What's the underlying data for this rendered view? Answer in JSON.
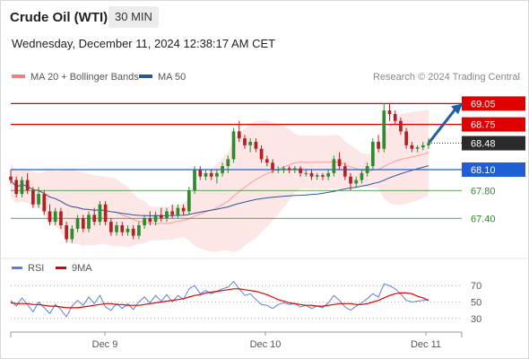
{
  "header": {
    "instrument": "Crude Oil (WTI)",
    "timeframe": "30 MIN",
    "datetime": "Wednesday, December 11, 2024 12:38:17 AM CET"
  },
  "legend": {
    "ma20": "MA 20 + Bollinger Bands",
    "ma50": "MA 50",
    "ma20_color": "#f08080",
    "ma50_color": "#2b579a"
  },
  "credit": "Research © 2024 Trading Central",
  "rsi_legend": {
    "rsi": "RSI",
    "ma9": "9MA",
    "rsi_color": "#5b7fdb",
    "ma9_color": "#e00000"
  },
  "colors": {
    "resistance": "#e00000",
    "support": "#1f5fd6",
    "target_green": "#2e8b2e",
    "last_price": "#2b2b2b",
    "bull": "#2e8b2e",
    "bear": "#b22222",
    "band_fill": "#fde3e3",
    "arrow": "#1f5fa8"
  },
  "chart_data": [
    {
      "type": "candlestick",
      "title": "Crude Oil (WTI)",
      "x_ticks": [
        "Dec 9",
        "Dec 10",
        "Dec 11"
      ],
      "ylim": [
        66.9,
        69.3
      ],
      "levels": [
        {
          "label": "69.05",
          "value": 69.05,
          "kind": "resistance"
        },
        {
          "label": "68.75",
          "value": 68.75,
          "kind": "resistance"
        },
        {
          "label": "68.48",
          "value": 68.48,
          "kind": "last"
        },
        {
          "label": "68.10",
          "value": 68.1,
          "kind": "pivot"
        },
        {
          "label": "67.80",
          "value": 67.8,
          "kind": "support"
        },
        {
          "label": "67.40",
          "value": 67.4,
          "kind": "support"
        }
      ],
      "candles": [
        [
          68.0,
          68.1,
          67.9,
          67.95
        ],
        [
          67.95,
          68.0,
          67.7,
          67.75
        ],
        [
          67.75,
          68.0,
          67.7,
          67.95
        ],
        [
          67.95,
          68.05,
          67.75,
          67.8
        ],
        [
          67.8,
          67.85,
          67.55,
          67.6
        ],
        [
          67.6,
          67.85,
          67.55,
          67.75
        ],
        [
          67.75,
          67.8,
          67.45,
          67.5
        ],
        [
          67.5,
          67.6,
          67.3,
          67.35
        ],
        [
          67.35,
          67.55,
          67.3,
          67.5
        ],
        [
          67.5,
          67.55,
          67.25,
          67.3
        ],
        [
          67.3,
          67.35,
          67.05,
          67.1
        ],
        [
          67.1,
          67.3,
          67.05,
          67.25
        ],
        [
          67.25,
          67.45,
          67.2,
          67.4
        ],
        [
          67.4,
          67.45,
          67.2,
          67.25
        ],
        [
          67.25,
          67.5,
          67.2,
          67.45
        ],
        [
          67.45,
          67.55,
          67.3,
          67.35
        ],
        [
          67.35,
          67.65,
          67.3,
          67.6
        ],
        [
          67.6,
          67.65,
          67.3,
          67.35
        ],
        [
          67.35,
          67.4,
          67.15,
          67.2
        ],
        [
          67.2,
          67.35,
          67.15,
          67.3
        ],
        [
          67.3,
          67.35,
          67.15,
          67.2
        ],
        [
          67.2,
          67.3,
          67.15,
          67.25
        ],
        [
          67.25,
          67.3,
          67.1,
          67.15
        ],
        [
          67.15,
          67.35,
          67.1,
          67.3
        ],
        [
          67.3,
          67.45,
          67.25,
          67.4
        ],
        [
          67.4,
          67.5,
          67.3,
          67.35
        ],
        [
          67.35,
          67.5,
          67.3,
          67.45
        ],
        [
          67.45,
          67.55,
          67.35,
          67.4
        ],
        [
          67.4,
          67.55,
          67.35,
          67.5
        ],
        [
          67.5,
          67.6,
          67.4,
          67.45
        ],
        [
          67.45,
          67.6,
          67.4,
          67.55
        ],
        [
          67.55,
          67.6,
          67.45,
          67.5
        ],
        [
          67.5,
          67.85,
          67.45,
          67.8
        ],
        [
          67.8,
          68.15,
          67.75,
          68.1
        ],
        [
          68.1,
          68.15,
          67.95,
          68.0
        ],
        [
          68.0,
          68.1,
          67.95,
          68.05
        ],
        [
          68.05,
          68.1,
          67.95,
          68.0
        ],
        [
          68.0,
          68.1,
          67.9,
          68.05
        ],
        [
          68.05,
          68.2,
          68.0,
          68.15
        ],
        [
          68.15,
          68.3,
          68.05,
          68.25
        ],
        [
          68.25,
          68.7,
          68.2,
          68.65
        ],
        [
          68.65,
          68.8,
          68.5,
          68.55
        ],
        [
          68.55,
          68.6,
          68.4,
          68.45
        ],
        [
          68.45,
          68.55,
          68.35,
          68.5
        ],
        [
          68.5,
          68.55,
          68.35,
          68.4
        ],
        [
          68.4,
          68.45,
          68.2,
          68.25
        ],
        [
          68.25,
          68.3,
          68.15,
          68.2
        ],
        [
          68.2,
          68.25,
          68.05,
          68.1
        ],
        [
          68.1,
          68.15,
          68.05,
          68.1
        ],
        [
          68.1,
          68.15,
          68.05,
          68.12
        ],
        [
          68.12,
          68.15,
          68.05,
          68.1
        ],
        [
          68.1,
          68.15,
          68.05,
          68.12
        ],
        [
          68.12,
          68.15,
          68.0,
          68.05
        ],
        [
          68.05,
          68.1,
          68.0,
          68.05
        ],
        [
          68.05,
          68.1,
          67.95,
          68.0
        ],
        [
          68.0,
          68.05,
          67.95,
          68.02
        ],
        [
          68.02,
          68.05,
          67.95,
          68.0
        ],
        [
          68.0,
          68.1,
          67.95,
          68.05
        ],
        [
          68.05,
          68.3,
          68.0,
          68.25
        ],
        [
          68.25,
          68.35,
          68.1,
          68.15
        ],
        [
          68.15,
          68.2,
          67.95,
          68.0
        ],
        [
          68.0,
          68.05,
          67.8,
          67.9
        ],
        [
          67.9,
          68.0,
          67.85,
          67.95
        ],
        [
          67.95,
          68.1,
          67.9,
          68.05
        ],
        [
          68.05,
          68.2,
          68.0,
          68.15
        ],
        [
          68.15,
          68.55,
          68.1,
          68.5
        ],
        [
          68.5,
          68.6,
          68.35,
          68.4
        ],
        [
          68.4,
          69.05,
          68.35,
          68.95
        ],
        [
          68.95,
          69.05,
          68.8,
          68.9
        ],
        [
          68.9,
          68.95,
          68.75,
          68.8
        ],
        [
          68.8,
          68.85,
          68.6,
          68.65
        ],
        [
          68.65,
          68.7,
          68.4,
          68.45
        ],
        [
          68.45,
          68.5,
          68.35,
          68.4
        ],
        [
          68.4,
          68.45,
          68.35,
          68.42
        ],
        [
          68.42,
          68.5,
          68.38,
          68.45
        ],
        [
          68.45,
          68.55,
          68.4,
          68.48
        ]
      ]
    },
    {
      "type": "line",
      "title": "RSI",
      "ylim": [
        20,
        80
      ],
      "y_ticks": [
        "70",
        "50",
        "30"
      ],
      "series": [
        {
          "name": "RSI",
          "values": [
            52,
            45,
            55,
            47,
            38,
            50,
            43,
            36,
            47,
            41,
            32,
            45,
            52,
            46,
            56,
            48,
            58,
            44,
            40,
            48,
            42,
            48,
            41,
            50,
            56,
            49,
            58,
            51,
            59,
            50,
            58,
            53,
            66,
            70,
            60,
            64,
            60,
            63,
            66,
            68,
            75,
            66,
            58,
            60,
            53,
            47,
            46,
            42,
            47,
            49,
            47,
            48,
            44,
            46,
            42,
            45,
            43,
            49,
            58,
            52,
            44,
            40,
            45,
            49,
            54,
            60,
            56,
            72,
            70,
            66,
            60,
            52,
            50,
            51,
            52,
            53
          ]
        },
        {
          "name": "9MA",
          "values": [
            49,
            48,
            48,
            48,
            47,
            47,
            46,
            45,
            45,
            44,
            43,
            43,
            43,
            44,
            45,
            46,
            47,
            48,
            48,
            47,
            47,
            46,
            46,
            46,
            47,
            48,
            49,
            50,
            51,
            52,
            53,
            54,
            56,
            58,
            59,
            61,
            62,
            63,
            64,
            65,
            66,
            66,
            65,
            64,
            63,
            61,
            59,
            56,
            53,
            51,
            49,
            48,
            47,
            46,
            46,
            45,
            45,
            46,
            47,
            48,
            48,
            48,
            47,
            47,
            48,
            50,
            52,
            55,
            58,
            60,
            61,
            61,
            60,
            57,
            55,
            52
          ]
        }
      ]
    }
  ]
}
